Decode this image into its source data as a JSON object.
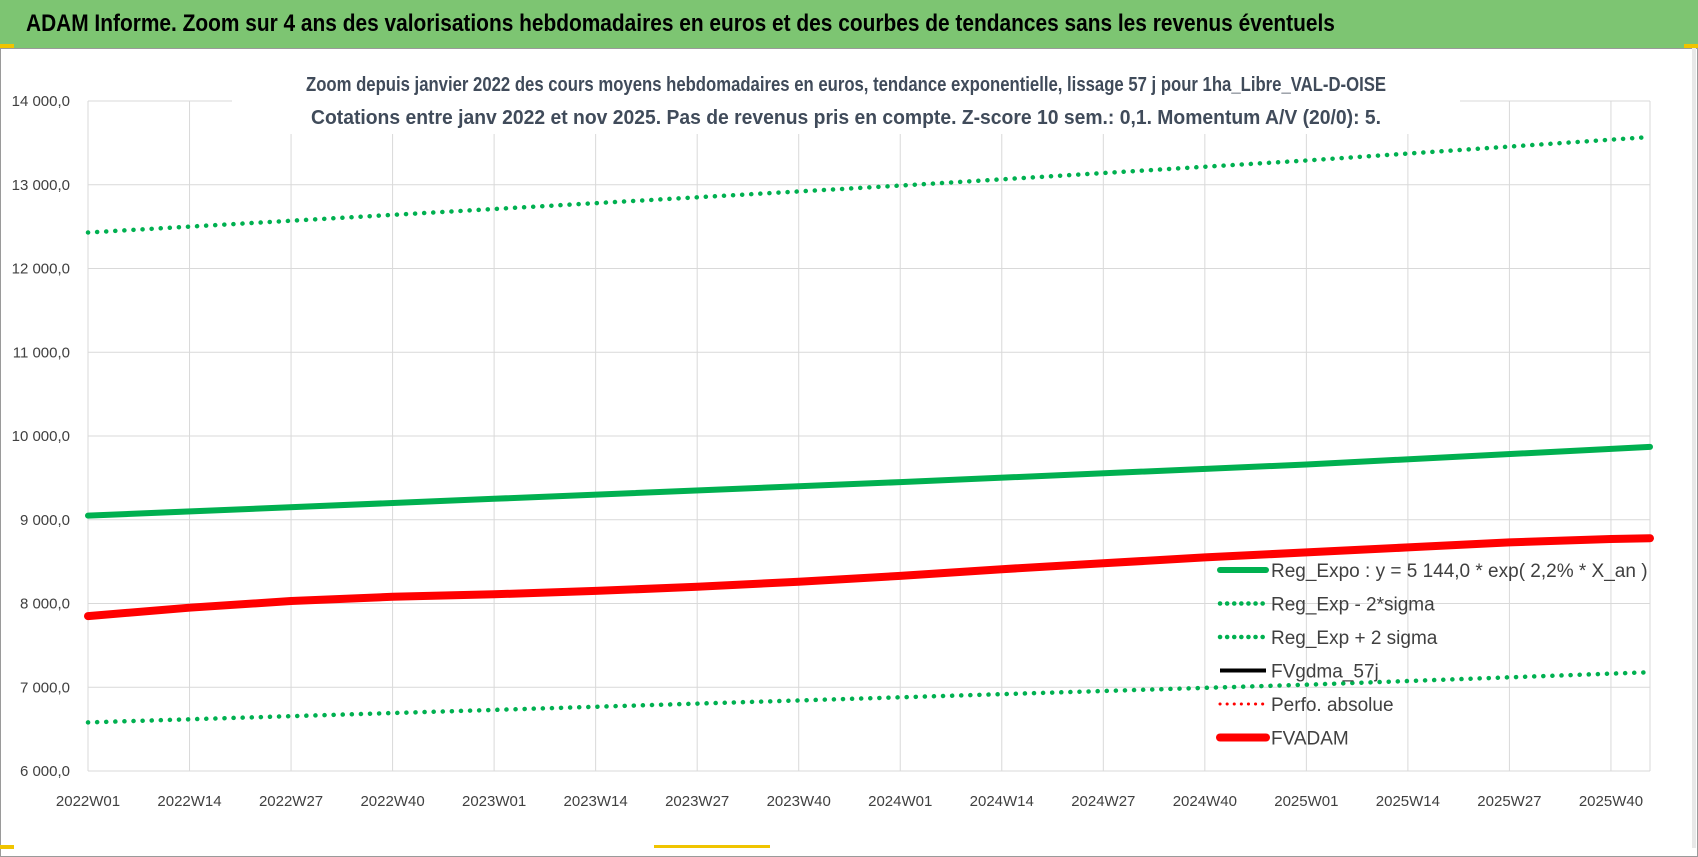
{
  "banner": {
    "title": "ADAM Informe. Zoom sur 4 ans des valorisations hebdomadaires en euros et des courbes de tendances sans les revenus éventuels"
  },
  "colors": {
    "banner_bg": "#7dc572",
    "trend_green": "#00b050",
    "adam_red": "#ff0000",
    "gdma_black": "#000000",
    "perfo_red": "#ff0000",
    "grid": "#d9d9d9"
  },
  "chart_data": {
    "type": "line",
    "title": [
      "Zoom depuis janvier 2022 des cours moyens hebdomadaires en euros, tendance exponentielle, lissage 57 j pour 1ha_Libre_VAL-D-OISE",
      "Cotations entre janv 2022 et nov 2025. Pas de revenus pris en compte. Z-score 10 sem.: 0,1. Momentum A/V (20/0): 5."
    ],
    "xlabel": "",
    "ylabel": "",
    "ylim": [
      6000,
      14000
    ],
    "yticks": [
      6000,
      7000,
      8000,
      9000,
      10000,
      11000,
      12000,
      13000,
      14000
    ],
    "ytick_labels": [
      "6 000,0",
      "7 000,0",
      "8 000,0",
      "9 000,0",
      "10 000,0",
      "11 000,0",
      "12 000,0",
      "13 000,0",
      "14 000,0"
    ],
    "x_range": [
      0,
      200
    ],
    "x_tick_positions": [
      0,
      13,
      26,
      39,
      52,
      65,
      78,
      91,
      104,
      117,
      130,
      143,
      156,
      169,
      182,
      195
    ],
    "x_tick_labels": [
      "2022W01",
      "2022W14",
      "2022W27",
      "2022W40",
      "2023W01",
      "2023W14",
      "2023W27",
      "2023W40",
      "2024W01",
      "2024W14",
      "2024W27",
      "2024W40",
      "2025W01",
      "2025W14",
      "2025W27",
      "2025W40"
    ],
    "grid": true,
    "legend_position": "bottom-right",
    "series": [
      {
        "name": "Reg_Expo : y = 5 144,0 * exp( 2,2% *  X_an )",
        "style": "solid-thick",
        "color": "#00b050",
        "x": [
          0,
          52,
          104,
          156,
          200
        ],
        "y": [
          9050,
          9250,
          9450,
          9660,
          9870
        ]
      },
      {
        "name": "Reg_Exp - 2*sigma",
        "style": "dotted",
        "color": "#00b050",
        "x": [
          0,
          52,
          104,
          156,
          200
        ],
        "y": [
          6580,
          6730,
          6880,
          7030,
          7180
        ]
      },
      {
        "name": "Reg_Exp + 2 sigma",
        "style": "dotted",
        "color": "#00b050",
        "x": [
          0,
          52,
          104,
          156,
          200
        ],
        "y": [
          12430,
          12710,
          12990,
          13290,
          13570
        ]
      },
      {
        "name": "FVgdma_57j",
        "style": "solid",
        "color": "#000000",
        "x": [],
        "y": []
      },
      {
        "name": "Perfo. absolue",
        "style": "dotted",
        "color": "#ff0000",
        "x": [],
        "y": []
      },
      {
        "name": "FVADAM",
        "style": "solid-thicker",
        "color": "#ff0000",
        "x": [
          0,
          13,
          26,
          39,
          52,
          65,
          78,
          91,
          104,
          117,
          130,
          143,
          156,
          169,
          182,
          195,
          200
        ],
        "y": [
          7850,
          7950,
          8030,
          8080,
          8110,
          8150,
          8200,
          8260,
          8330,
          8410,
          8480,
          8550,
          8610,
          8670,
          8730,
          8770,
          8780
        ]
      }
    ]
  }
}
